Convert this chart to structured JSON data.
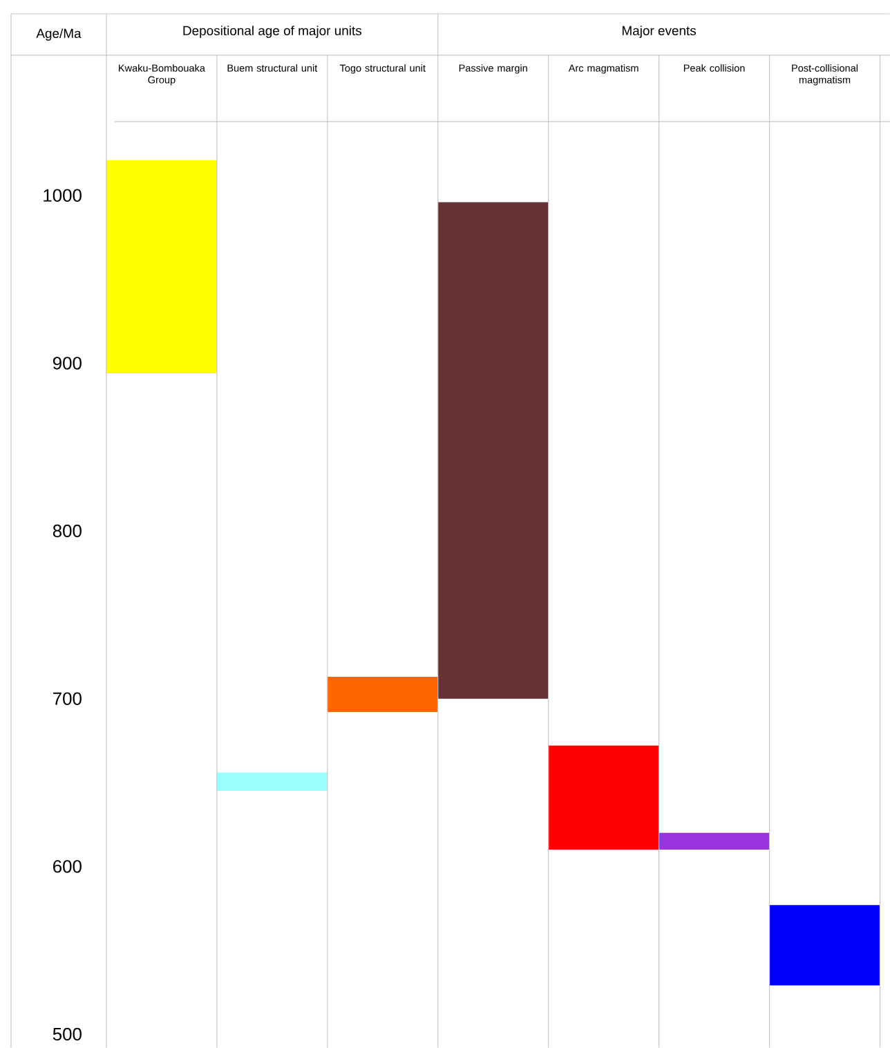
{
  "chart_data": {
    "type": "bar",
    "categories": [
      "Kwaku-Bombouaka Group",
      "Buem structural unit",
      "Togo structural unit",
      "Passive margin",
      "Arc magmatism",
      "Peak collision",
      "Post-collisional magmatism"
    ],
    "base": [
      894,
      645,
      692,
      700,
      610,
      610,
      529
    ],
    "values": [
      127,
      11,
      21,
      296,
      62,
      10,
      48
    ],
    "colors": [
      "#ffff00",
      "#99ffff",
      "#ff6600",
      "#663333",
      "#ff0000",
      "#9933dd",
      "#0000ff"
    ],
    "ylabel": "Age/Ma",
    "ylim": [
      492,
      1044
    ],
    "yticks": [
      500,
      600,
      700,
      800,
      900,
      1000
    ],
    "annotations": [
      "Depositional age of major units",
      "Major events"
    ]
  }
}
